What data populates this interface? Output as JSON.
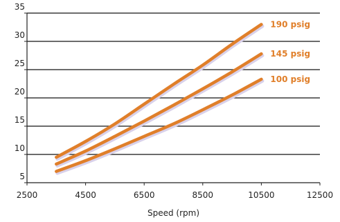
{
  "chart_data": {
    "type": "line",
    "title": "",
    "xlabel": "Speed (rpm)",
    "ylabel": "",
    "xlim": [
      2500,
      12500
    ],
    "ylim": [
      5,
      35
    ],
    "grid": true,
    "x_ticks": [
      2500,
      4500,
      6500,
      8500,
      10500,
      12500
    ],
    "x_tick_labels": [
      "2500",
      "4500",
      "6500",
      "8500",
      "10500",
      "12500"
    ],
    "y_ticks": [
      5,
      10,
      15,
      20,
      25,
      30,
      35
    ],
    "y_tick_labels": [
      "5",
      "10",
      "15",
      "20",
      "25",
      "30",
      "35"
    ],
    "series_color": "#e07f2a",
    "shadow_color": "#d9d1ea",
    "series": [
      {
        "name": "190 psig",
        "x": [
          3500,
          4500,
          5500,
          6500,
          7500,
          8500,
          9500,
          10500
        ],
        "y": [
          9.5,
          12.3,
          15.4,
          18.9,
          22.4,
          25.8,
          29.5,
          33.0
        ]
      },
      {
        "name": "145 psig",
        "x": [
          3500,
          4500,
          5500,
          6500,
          7500,
          8500,
          9500,
          10500
        ],
        "y": [
          8.3,
          10.6,
          13.2,
          15.9,
          18.7,
          21.6,
          24.6,
          27.8
        ]
      },
      {
        "name": "100 psig",
        "x": [
          3500,
          4500,
          5500,
          6500,
          7500,
          8500,
          9500,
          10500
        ],
        "y": [
          7.0,
          8.9,
          11.0,
          13.2,
          15.4,
          17.9,
          20.5,
          23.3
        ]
      }
    ]
  }
}
